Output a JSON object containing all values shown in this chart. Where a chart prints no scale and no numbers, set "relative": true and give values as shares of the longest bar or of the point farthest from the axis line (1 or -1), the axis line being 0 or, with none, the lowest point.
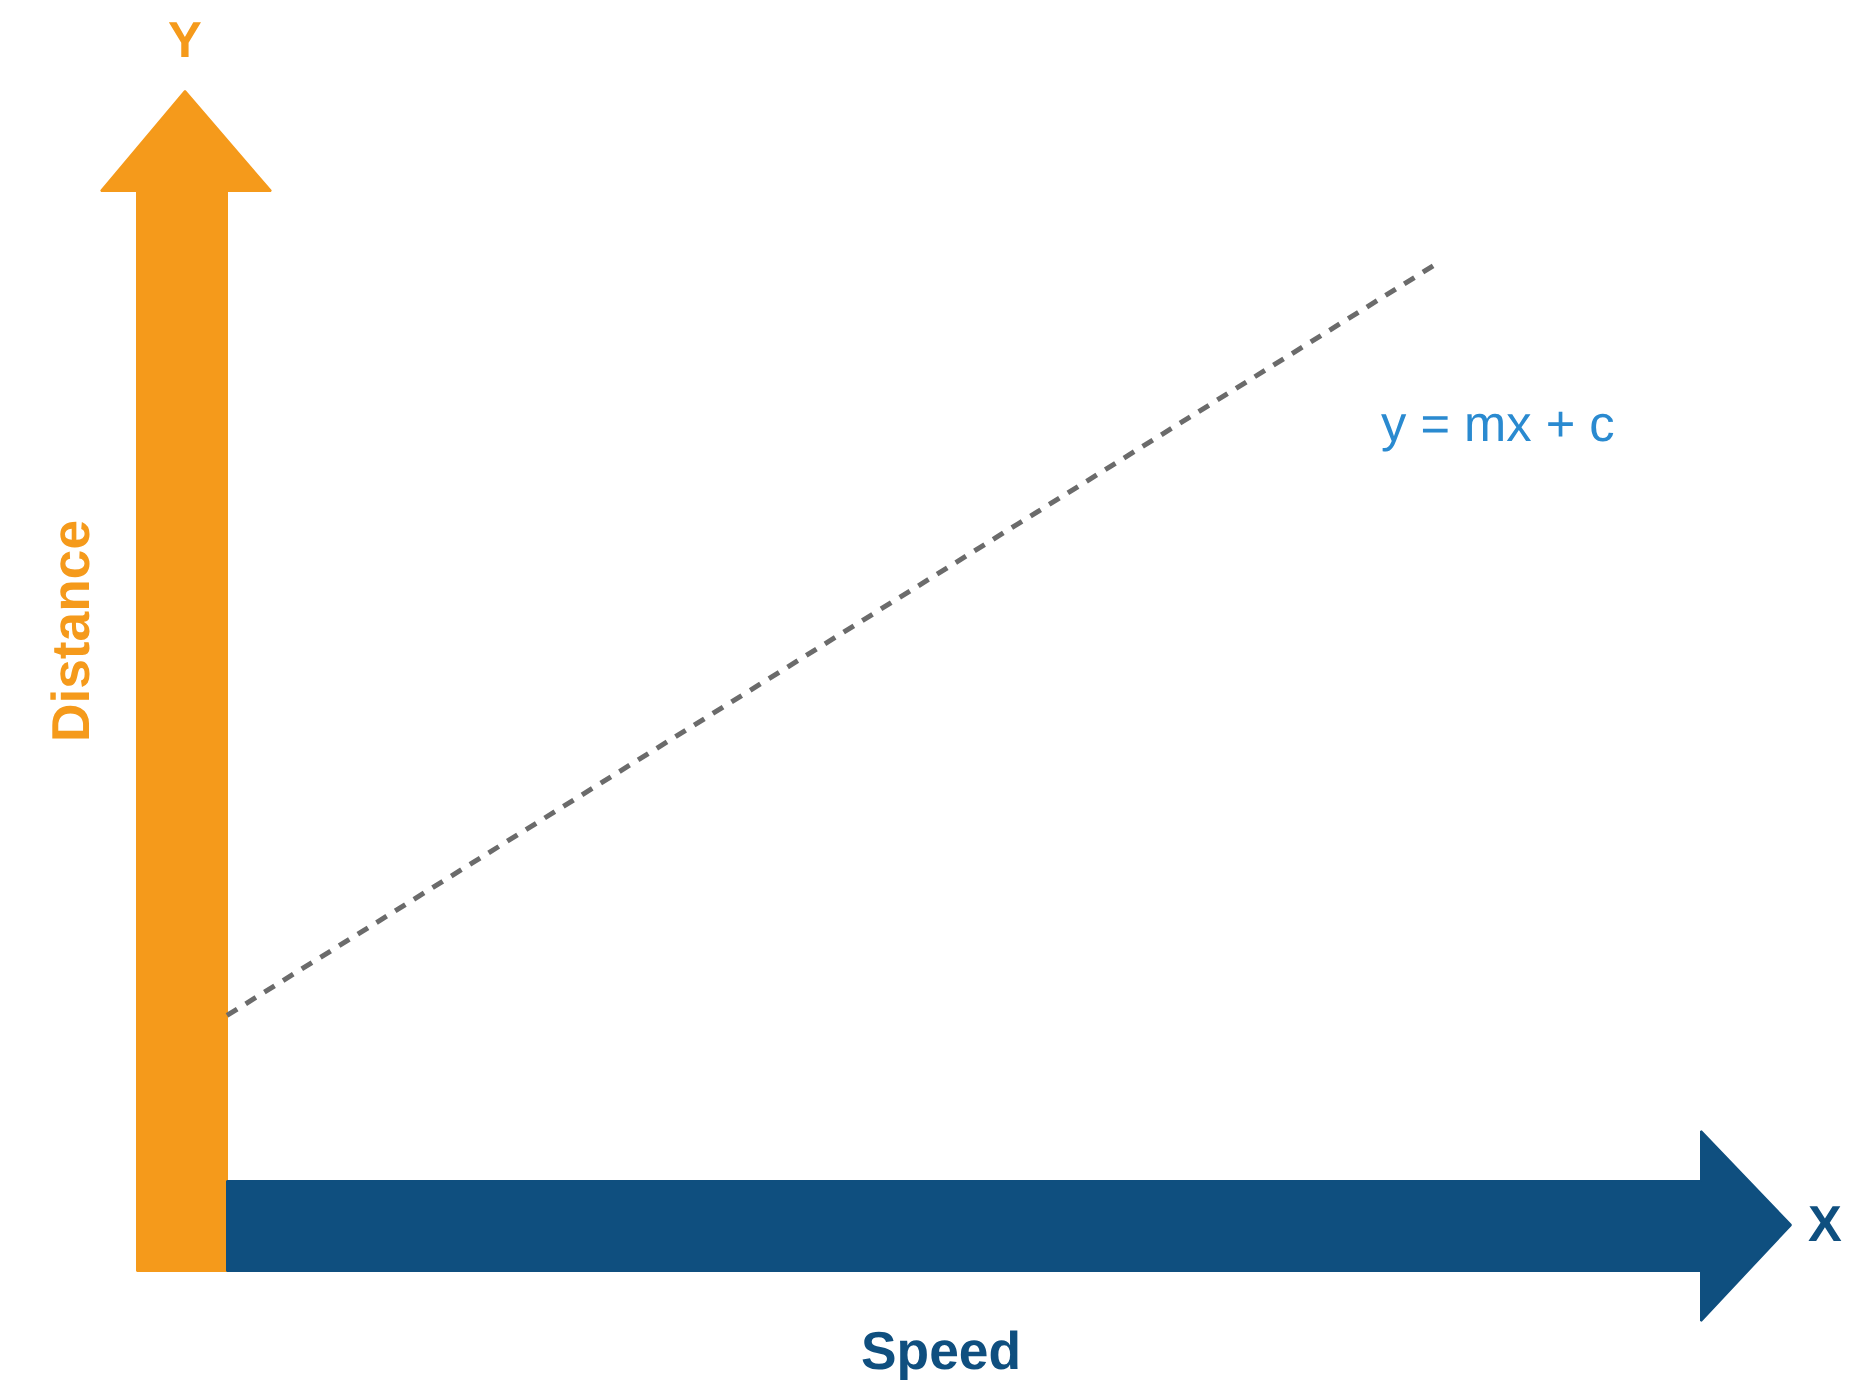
{
  "chart_data": {
    "type": "line",
    "relative": true,
    "xlabel": "Speed",
    "ylabel": "Distance",
    "categories": [
      null,
      null
    ],
    "series": [
      {
        "color": "#6b6b6b",
        "values": [
          0.18,
          1
        ]
      }
    ],
    "line_style": "dashed",
    "marker": "none",
    "grid": false,
    "tick_labels": false,
    "annotations": [
      "Y",
      "X",
      "y = mx + c"
    ]
  }
}
